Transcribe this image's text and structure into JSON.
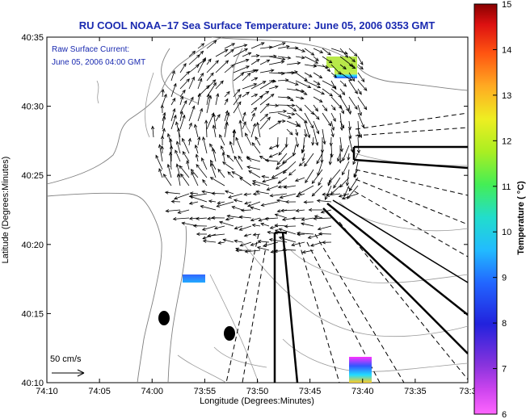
{
  "title": "RU COOL  NOAA−17  Sea Surface Temperature:  June 05, 2006 0353 GMT",
  "annotation": {
    "line1": "Raw Surface Current:",
    "line2": "June 05, 2006 04:00 GMT"
  },
  "scale": {
    "label": "50 cm/s"
  },
  "axes": {
    "xlabel": "Longitude (Degrees:Minutes)",
    "ylabel": "Latitude (Degrees:Minutes)",
    "xticks": [
      "74:10",
      "74:05",
      "74:00",
      "73:55",
      "73:50",
      "73:45",
      "73:40",
      "73:35",
      "73:3"
    ],
    "yticks": [
      "40:35",
      "40:30",
      "40:25",
      "40:20",
      "40:15",
      "40:10"
    ]
  },
  "colorbar": {
    "label": "Temperature ( °C)",
    "ticks": [
      "15",
      "14",
      "13",
      "12",
      "11",
      "10",
      "9",
      "8",
      "7",
      "6"
    ],
    "min": 6,
    "max": 15
  },
  "colors": {
    "title": "#1a2ab0",
    "coast": "#808080",
    "arrow": "#000000"
  }
}
